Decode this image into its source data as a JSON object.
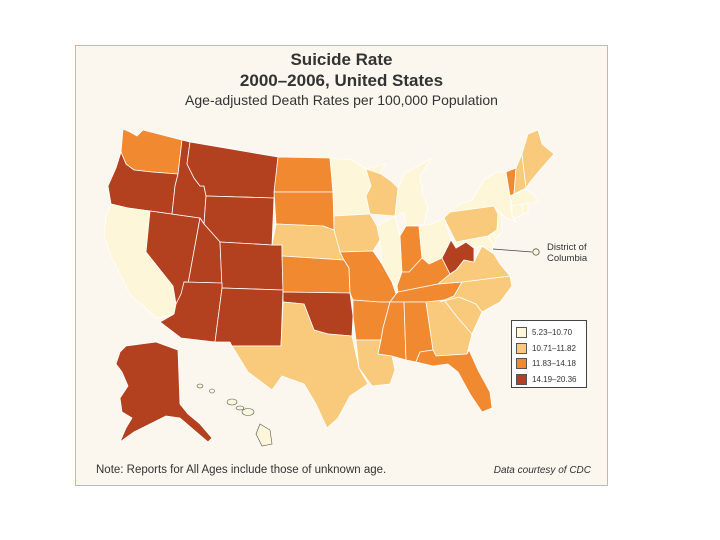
{
  "title": {
    "line1": "Suicide Rate",
    "line2": "2000–2006, United States",
    "line3": "Age-adjusted Death Rates per 100,000 Population"
  },
  "legend": [
    {
      "label": "5.23–10.70",
      "color": "#fdf6d8"
    },
    {
      "label": "10.71–11.82",
      "color": "#f9c97c"
    },
    {
      "label": "11.83–14.18",
      "color": "#f0892f"
    },
    {
      "label": "14.19–20.36",
      "color": "#b3401f"
    }
  ],
  "dc_label": "District of Columbia",
  "note": "Note: Reports for All Ages include those of unknown age.",
  "credit": "Data courtesy of CDC",
  "state_categories": {
    "WA": 3,
    "OR": 4,
    "CA": 1,
    "NV": 4,
    "ID": 4,
    "MT": 4,
    "WY": 4,
    "UT": 4,
    "CO": 4,
    "AZ": 4,
    "NM": 4,
    "ND": 3,
    "SD": 3,
    "NE": 2,
    "KS": 3,
    "OK": 4,
    "TX": 2,
    "MN": 1,
    "IA": 2,
    "MO": 3,
    "AR": 3,
    "LA": 2,
    "WI": 2,
    "IL": 1,
    "MI": 1,
    "IN": 3,
    "OH": 1,
    "KY": 3,
    "TN": 3,
    "MS": 3,
    "AL": 3,
    "GA": 2,
    "FL": 3,
    "SC": 2,
    "NC": 2,
    "VA": 2,
    "WV": 4,
    "PA": 2,
    "NY": 1,
    "NJ": 1,
    "MD": 1,
    "DE": 1,
    "CT": 1,
    "RI": 1,
    "MA": 1,
    "VT": 3,
    "NH": 2,
    "ME": 2,
    "DC": 1,
    "AK": 4,
    "HI": 1
  }
}
